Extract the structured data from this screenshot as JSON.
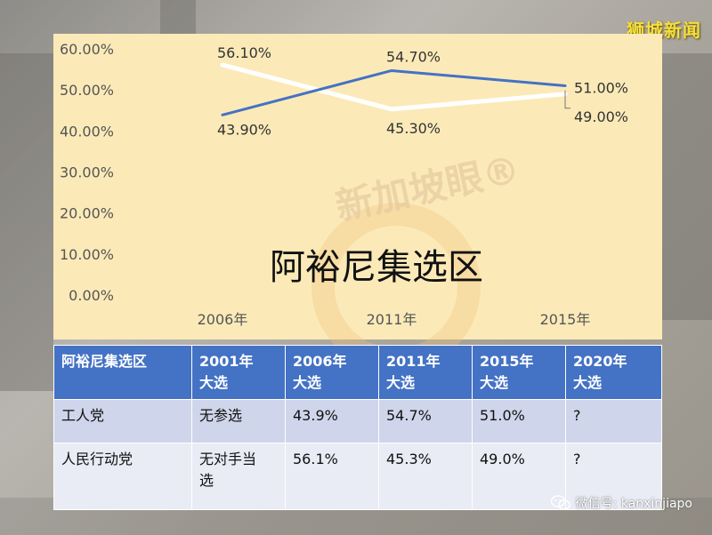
{
  "brand": "狮城新闻",
  "watermark": "新加坡眼®",
  "chart_data": {
    "type": "line",
    "title": "阿裕尼集选区",
    "x": [
      "2006年",
      "2011年",
      "2015年"
    ],
    "ylim": [
      0,
      60
    ],
    "yticks": [
      "0.00%",
      "10.00%",
      "20.00%",
      "30.00%",
      "40.00%",
      "50.00%",
      "60.00%"
    ],
    "grid": false,
    "series": [
      {
        "values": [
          43.9,
          54.7,
          51.0
        ],
        "labels": [
          "43.90%",
          "54.70%",
          "51.00%"
        ],
        "color": "#4472c4"
      },
      {
        "values": [
          56.1,
          45.3,
          49.0
        ],
        "labels": [
          "56.10%",
          "45.30%",
          "49.00%"
        ],
        "color": "#ffffff"
      }
    ]
  },
  "table": {
    "headers": [
      "阿裕尼集选区",
      "2001年\n大选",
      "2006年\n大选",
      "2011年\n大选",
      "2015年\n大选",
      "2020年\n大选"
    ],
    "rows": [
      [
        "工人党",
        "无参选",
        "43.9%",
        "54.7%",
        "51.0%",
        "?"
      ],
      [
        "人民行动党",
        "无对手当\n选",
        "56.1%",
        "45.3%",
        "49.0%",
        "?"
      ]
    ]
  },
  "footer": {
    "wechat_label": "微信号: kanxinjiapo"
  }
}
